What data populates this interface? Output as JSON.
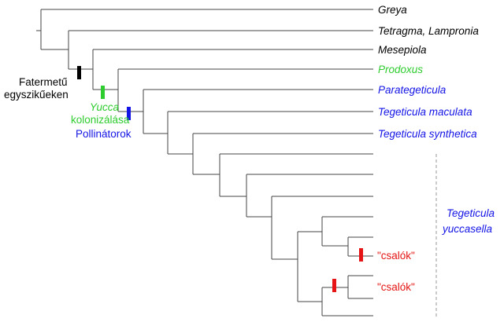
{
  "colors": {
    "black": "#000000",
    "green": "#2ecc2e",
    "blue": "#1414e6",
    "red": "#e61414",
    "branch": "#444444"
  },
  "taxa": {
    "greya": "Greya",
    "tetragma": "Tetragma, Lampronia",
    "mesepiola": "Mesepiola",
    "prodoxus": "Prodoxus",
    "parategeticula": "Parategeticula",
    "maculata": "Tegeticula maculata",
    "synthetica": "Tegeticula synthetica"
  },
  "group_label": {
    "line1": "Tegeticula",
    "line2": "yuccasella"
  },
  "events": {
    "woody_monocots": {
      "line1": "Fatermetű",
      "line2": "egyszikűeken"
    },
    "yucca": {
      "line1": "Yucca",
      "line2": "kolonizálása"
    },
    "pollinators": "Pollinátorok"
  },
  "cheaters": [
    "\"csalók\"",
    "\"csalók\""
  ]
}
